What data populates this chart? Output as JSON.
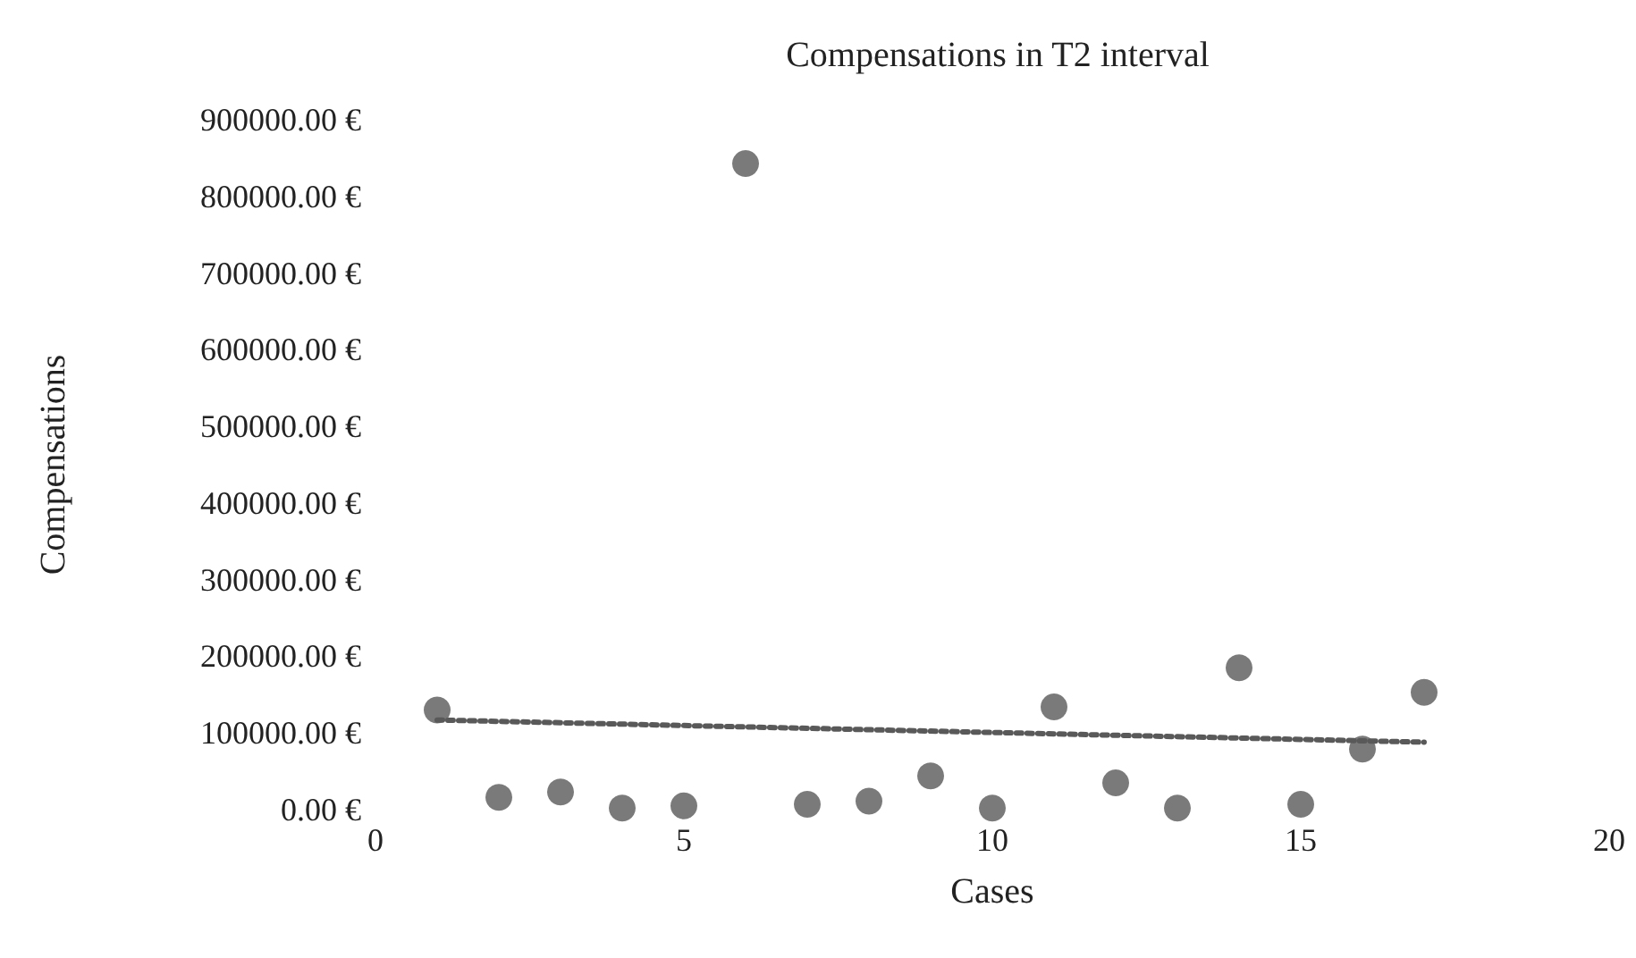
{
  "chart_data": {
    "type": "scatter",
    "title": "Compensations in T2 interval",
    "xlabel": "Cases",
    "ylabel": "Compensations",
    "xlim": [
      0,
      20
    ],
    "xticks": [
      0,
      5,
      10,
      15,
      20
    ],
    "ylim": [
      0,
      900000
    ],
    "yticks": [
      {
        "value": 0,
        "label": "0.00 €"
      },
      {
        "value": 100000,
        "label": "100000.00 €"
      },
      {
        "value": 200000,
        "label": "200000.00 €"
      },
      {
        "value": 300000,
        "label": "300000.00 €"
      },
      {
        "value": 400000,
        "label": "400000.00 €"
      },
      {
        "value": 500000,
        "label": "500000.00 €"
      },
      {
        "value": 600000,
        "label": "600000.00 €"
      },
      {
        "value": 700000,
        "label": "700000.00 €"
      },
      {
        "value": 800000,
        "label": "800000.00 €"
      },
      {
        "value": 900000,
        "label": "900000.00 €"
      }
    ],
    "grid": false,
    "marker": "circle",
    "series": [
      {
        "color": "#595959",
        "x": [
          1,
          2,
          3,
          4,
          5,
          6,
          7,
          8,
          9,
          10,
          11,
          12,
          13,
          14,
          15,
          16,
          17
        ],
        "values": [
          130000,
          16000,
          23000,
          2000,
          5000,
          843000,
          7000,
          11000,
          44000,
          2000,
          134000,
          35000,
          2000,
          185000,
          7000,
          79000,
          153000
        ]
      },
      {
        "type": "line",
        "color": "#595959",
        "line_style": "dotted",
        "marker": "none",
        "x": [
          1,
          17
        ],
        "values": [
          117000,
          88000
        ]
      }
    ]
  }
}
